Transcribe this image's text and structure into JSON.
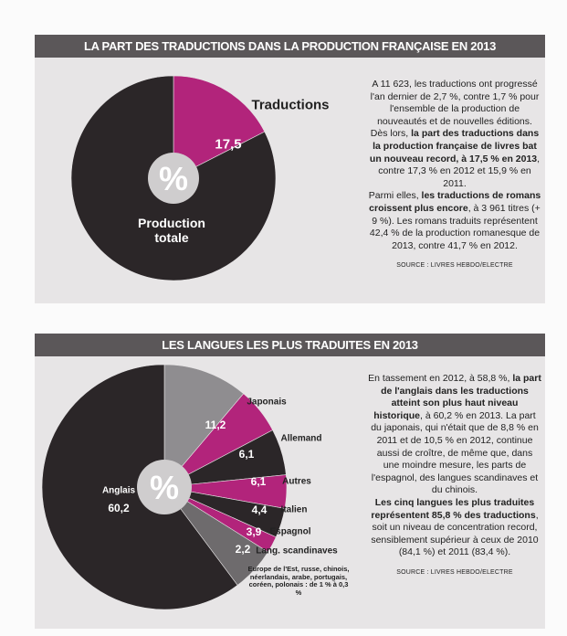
{
  "chart_data": [
    {
      "type": "pie",
      "title": "LA PART DES TRADUCTIONS DANS LA PRODUCTION FRANÇAISE EN 2013",
      "center_label": "%",
      "categories": [
        "Traductions",
        "Production totale"
      ],
      "values": [
        17.5,
        82.5
      ],
      "value_labels": [
        "17,5",
        null
      ],
      "colors": [
        "#b2247b",
        "#2b2628"
      ]
    },
    {
      "type": "pie",
      "title": "LES LANGUES LES PLUS TRADUITES EN 2013",
      "center_label": "%",
      "categories": [
        "Japonais",
        "Allemand",
        "Autres",
        "Italien",
        "Espagnol",
        "Lang. scandinaves",
        "Europe de l'Est, russe, chinois, néerlandais, arabe, portugais, coréen, polonais : de 1 % à 0,3 %",
        "Anglais"
      ],
      "values": [
        11.2,
        6.1,
        6.1,
        4.4,
        3.9,
        2.2,
        5.9,
        60.2
      ],
      "value_labels": [
        "11,2",
        "6,1",
        "6,1",
        "4,4",
        "3,9",
        "2,2",
        null,
        "60,2"
      ],
      "colors": [
        "#8f8d90",
        "#b2247b",
        "#2b2628",
        "#b2247b",
        "#2b2628",
        "#b2247b",
        "#6e6b6d",
        "#2b2628"
      ]
    }
  ],
  "notes": [
    {
      "paragraphs": [
        [
          {
            "text": "A 11 623, les traductions ont progressé l'an dernier de 2,7 %, contre 1,7 % pour l'ensemble de la production de nouveautés et de nouvelles éditions. Dès lors, ",
            "bold": false
          },
          {
            "text": "la part des traductions dans la production française de livres bat un nouveau record, à 17,5 % en 2013",
            "bold": true
          },
          {
            "text": ", contre 17,3 % en 2012 et 15,9 % en 2011.",
            "bold": false
          }
        ],
        [
          {
            "text": "Parmi elles, ",
            "bold": false
          },
          {
            "text": "les traductions de romans croissent plus encore",
            "bold": true
          },
          {
            "text": ", à 3 961 titres (+ 9 %). Les romans traduits représentent 42,4 % de la production romanesque de 2013, contre 41,7 % en 2012.",
            "bold": false
          }
        ]
      ],
      "source": "SOURCE : LIVRES HEBDO/ELECTRE"
    },
    {
      "paragraphs": [
        [
          {
            "text": "En tassement en 2012, à 58,8 %, ",
            "bold": false
          },
          {
            "text": "la part de l'anglais dans les traductions atteint son plus haut niveau historique",
            "bold": true
          },
          {
            "text": ", à 60,2 % en 2013. La part du japonais, qui n'était que de 8,8 % en 2011 et de 10,5 % en 2012, continue aussi de croître, de même que, dans une moindre mesure, les parts de l'espagnol, des langues scandinaves et du chinois.",
            "bold": false
          }
        ],
        [
          {
            "text": "Les cinq langues les plus traduites représentent 85,8 % des traductions",
            "bold": true
          },
          {
            "text": ", soit un niveau de concentration record, sensiblement supérieur à ceux de 2010 (84,1 %) et 2011 (83,4 %).",
            "bold": false
          }
        ]
      ],
      "source": "SOURCE : LIVRES HEBDO/ELECTRE"
    }
  ]
}
